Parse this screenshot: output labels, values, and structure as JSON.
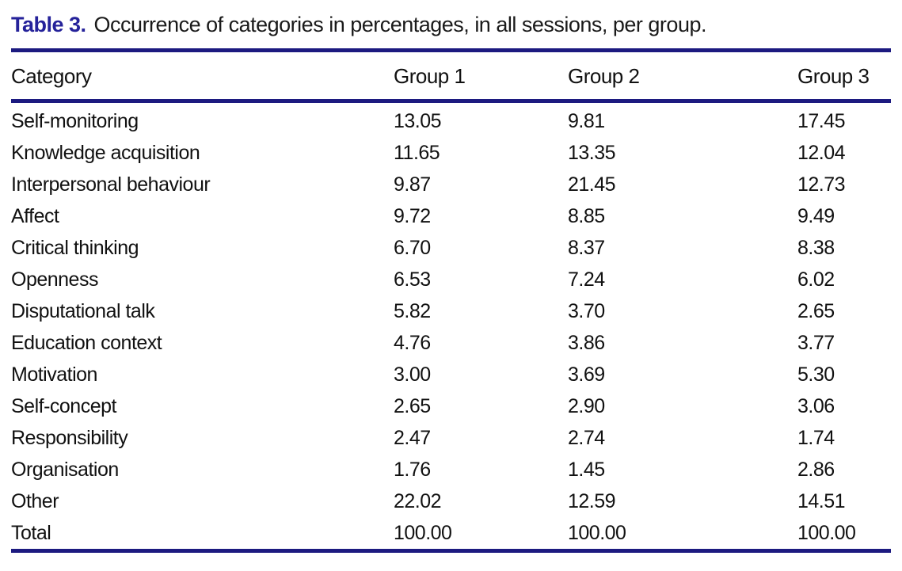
{
  "table": {
    "label": "Table 3.",
    "caption": "Occurrence of categories in percentages, in all sessions, per group.",
    "columns": [
      "Category",
      "Group 1",
      "Group 2",
      "Group 3"
    ],
    "rows": [
      {
        "category": "Self-monitoring",
        "values": [
          "13.05",
          "9.81",
          "17.45"
        ]
      },
      {
        "category": "Knowledge acquisition",
        "values": [
          "11.65",
          "13.35",
          "12.04"
        ]
      },
      {
        "category": "Interpersonal behaviour",
        "values": [
          "9.87",
          "21.45",
          "12.73"
        ]
      },
      {
        "category": "Affect",
        "values": [
          "9.72",
          "8.85",
          "9.49"
        ]
      },
      {
        "category": "Critical thinking",
        "values": [
          "6.70",
          "8.37",
          "8.38"
        ]
      },
      {
        "category": "Openness",
        "values": [
          "6.53",
          "7.24",
          "6.02"
        ]
      },
      {
        "category": "Disputational talk",
        "values": [
          "5.82",
          "3.70",
          "2.65"
        ]
      },
      {
        "category": "Education context",
        "values": [
          "4.76",
          "3.86",
          "3.77"
        ]
      },
      {
        "category": "Motivation",
        "values": [
          "3.00",
          "3.69",
          "5.30"
        ]
      },
      {
        "category": "Self-concept",
        "values": [
          "2.65",
          "2.90",
          "3.06"
        ]
      },
      {
        "category": "Responsibility",
        "values": [
          "2.47",
          "2.74",
          "1.74"
        ]
      },
      {
        "category": "Organisation",
        "values": [
          "1.76",
          "1.45",
          "2.86"
        ]
      },
      {
        "category": "Other",
        "values": [
          "22.02",
          "12.59",
          "14.51"
        ]
      },
      {
        "category": "Total",
        "values": [
          "100.00",
          "100.00",
          "100.00"
        ]
      }
    ],
    "colors": {
      "accent_navy_label": "#25229a",
      "rule_navy": "#1c1a80",
      "text": "#111111"
    }
  },
  "chart_data": {
    "type": "table",
    "title": "Table 3. Occurrence of categories in percentages, in all sessions, per group.",
    "columns": [
      "Category",
      "Group 1",
      "Group 2",
      "Group 3"
    ],
    "categories": [
      "Self-monitoring",
      "Knowledge acquisition",
      "Interpersonal behaviour",
      "Affect",
      "Critical thinking",
      "Openness",
      "Disputational talk",
      "Education context",
      "Motivation",
      "Self-concept",
      "Responsibility",
      "Organisation",
      "Other",
      "Total"
    ],
    "series": [
      {
        "name": "Group 1",
        "values": [
          13.05,
          11.65,
          9.87,
          9.72,
          6.7,
          6.53,
          5.82,
          4.76,
          3.0,
          2.65,
          2.47,
          1.76,
          22.02,
          100.0
        ]
      },
      {
        "name": "Group 2",
        "values": [
          9.81,
          13.35,
          21.45,
          8.85,
          8.37,
          7.24,
          3.7,
          3.86,
          3.69,
          2.9,
          2.74,
          1.45,
          12.59,
          100.0
        ]
      },
      {
        "name": "Group 3",
        "values": [
          17.45,
          12.04,
          12.73,
          9.49,
          8.38,
          6.02,
          2.65,
          3.77,
          5.3,
          3.06,
          1.74,
          2.86,
          14.51,
          100.0
        ]
      }
    ]
  }
}
